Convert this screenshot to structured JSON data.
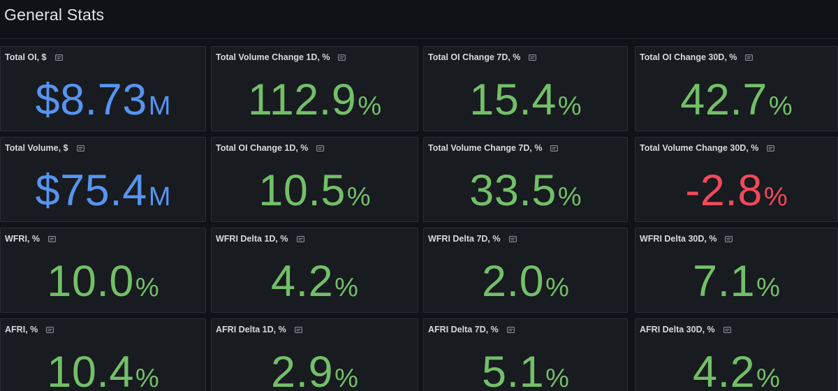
{
  "row": {
    "title": "General Stats"
  },
  "colors": {
    "blue": "#5794f2",
    "green": "#73bf69",
    "red": "#f2495c",
    "panel_bg": "#181b1f",
    "page_bg": "#111217"
  },
  "panels": [
    {
      "title": "Total OI, $",
      "value": "$8.73",
      "unit": "M",
      "color": "blue"
    },
    {
      "title": "Total Volume Change 1D, %",
      "value": "112.9",
      "unit": "%",
      "color": "green"
    },
    {
      "title": "Total OI Change 7D, %",
      "value": "15.4",
      "unit": "%",
      "color": "green"
    },
    {
      "title": "Total OI Change 30D, %",
      "value": "42.7",
      "unit": "%",
      "color": "green"
    },
    {
      "title": "Total Volume, $",
      "value": "$75.4",
      "unit": "M",
      "color": "blue"
    },
    {
      "title": "Total OI Change 1D, %",
      "value": "10.5",
      "unit": "%",
      "color": "green"
    },
    {
      "title": "Total Volume Change 7D, %",
      "value": "33.5",
      "unit": "%",
      "color": "green"
    },
    {
      "title": "Total Volume Change 30D, %",
      "value": "-2.8",
      "unit": "%",
      "color": "red"
    },
    {
      "title": "WFRI, %",
      "value": "10.0",
      "unit": "%",
      "color": "green"
    },
    {
      "title": "WFRI Delta 1D, %",
      "value": "4.2",
      "unit": "%",
      "color": "green"
    },
    {
      "title": "WFRI Delta 7D, %",
      "value": "2.0",
      "unit": "%",
      "color": "green"
    },
    {
      "title": "WFRI Delta 30D, %",
      "value": "7.1",
      "unit": "%",
      "color": "green"
    },
    {
      "title": "AFRI, %",
      "value": "10.4",
      "unit": "%",
      "color": "green"
    },
    {
      "title": "AFRI Delta 1D, %",
      "value": "2.9",
      "unit": "%",
      "color": "green"
    },
    {
      "title": "AFRI Delta 7D, %",
      "value": "5.1",
      "unit": "%",
      "color": "green"
    },
    {
      "title": "AFRI Delta 30D, %",
      "value": "4.2",
      "unit": "%",
      "color": "green"
    }
  ],
  "icons": {
    "panel_info": "description-icon"
  }
}
